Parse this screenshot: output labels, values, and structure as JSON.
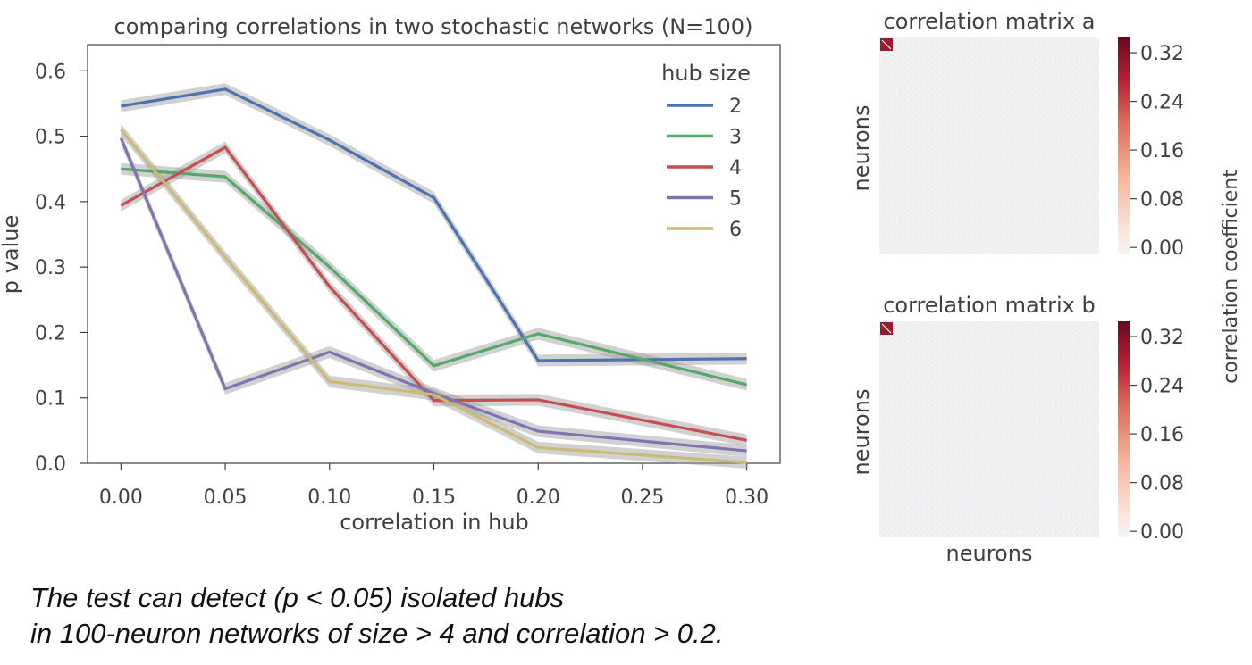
{
  "chart_data": [
    {
      "type": "line",
      "title": "comparing correlations in two stochastic networks (N=100)",
      "xlabel": "correlation in hub",
      "ylabel": "p value",
      "x": [
        0.0,
        0.05,
        0.1,
        0.15,
        0.2,
        0.3
      ],
      "x_tick_labels": [
        "0.00",
        "0.05",
        "0.10",
        "0.15",
        "0.20",
        "0.25",
        "0.30"
      ],
      "x_ticks": [
        0.0,
        0.05,
        0.1,
        0.15,
        0.2,
        0.25,
        0.3
      ],
      "y_tick_labels": [
        "0.0",
        "0.1",
        "0.2",
        "0.3",
        "0.4",
        "0.5",
        "0.6"
      ],
      "y_ticks": [
        0.0,
        0.1,
        0.2,
        0.3,
        0.4,
        0.5,
        0.6
      ],
      "xlim": [
        -0.016,
        0.316
      ],
      "ylim": [
        0.0,
        0.64
      ],
      "grid": false,
      "legend_title": "hub size",
      "legend_position": "top-right",
      "series": [
        {
          "name": "2",
          "color": "#4c72b0",
          "values": [
            0.546,
            0.572,
            0.494,
            0.406,
            0.157,
            0.16
          ],
          "ci": 0.009
        },
        {
          "name": "3",
          "color": "#55a868",
          "values": [
            0.45,
            0.438,
            0.3,
            0.149,
            0.198,
            0.12
          ],
          "ci": 0.009
        },
        {
          "name": "4",
          "color": "#c44e52",
          "values": [
            0.394,
            0.483,
            0.27,
            0.096,
            0.097,
            0.035
          ],
          "ci": 0.009
        },
        {
          "name": "5",
          "color": "#8172b2",
          "values": [
            0.497,
            0.114,
            0.17,
            0.107,
            0.049,
            0.019
          ],
          "ci": 0.009
        },
        {
          "name": "6",
          "color": "#ccb974",
          "values": [
            0.51,
            0.315,
            0.125,
            0.105,
            0.024,
            0.001
          ],
          "ci": 0.009
        }
      ]
    },
    {
      "type": "heatmap",
      "title": "correlation matrix a",
      "ylabel": "neurons",
      "xlabel": "",
      "size": 100,
      "hub_size": 6,
      "hub_value": 0.34,
      "background_value": 0.0
    },
    {
      "type": "heatmap",
      "title": "correlation matrix b",
      "ylabel": "neurons",
      "xlabel": "neurons",
      "size": 100,
      "hub_size": 6,
      "hub_value": 0.34,
      "background_value": 0.0
    }
  ],
  "colorbar": {
    "label": "correlation coefficient",
    "tick_values": [
      0.32,
      0.24,
      0.16,
      0.08,
      0.0
    ],
    "tick_labels": [
      "0.32",
      "0.24",
      "0.16",
      "0.08",
      "0.00"
    ],
    "range": [
      -0.01,
      0.345
    ]
  },
  "caption": {
    "line1": "The test can detect (p < 0.05) isolated hubs",
    "line2": "in 100-neuron networks of size > 4 and correlation > 0.2."
  }
}
